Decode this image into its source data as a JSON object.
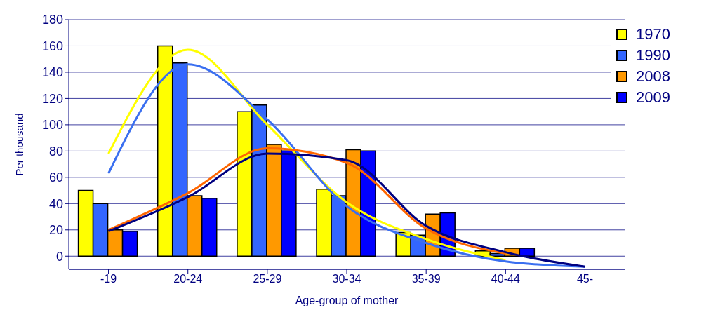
{
  "chart_data": {
    "type": "bar",
    "xlabel": "Age-group of mother",
    "ylabel": "Per thousand",
    "categories": [
      "-19",
      "20-24",
      "25-29",
      "30-34",
      "35-39",
      "40-44",
      "45-"
    ],
    "series": [
      {
        "name": "1970",
        "color": "#ffff00",
        "values": [
          50,
          160,
          110,
          51,
          18,
          4,
          0
        ]
      },
      {
        "name": "1990",
        "color": "#3366ff",
        "values": [
          40,
          147,
          115,
          46,
          16,
          2,
          0
        ]
      },
      {
        "name": "2008",
        "color": "#ff9900",
        "values": [
          20,
          46,
          85,
          81,
          32,
          6,
          0
        ]
      },
      {
        "name": "2009",
        "color": "#0000ff",
        "values": [
          19,
          44,
          80,
          80,
          33,
          6,
          0
        ]
      },
      {
        "type": "line",
        "color": "#ffff00",
        "values": [
          78,
          157,
          100,
          41,
          13,
          -3,
          null
        ]
      },
      {
        "type": "line",
        "color": "#3a6ff0",
        "values": [
          63,
          146,
          104,
          38,
          10,
          -4,
          -8
        ]
      },
      {
        "type": "line",
        "color": "#ff6600",
        "values": [
          20,
          48,
          82,
          71,
          21,
          2,
          null
        ]
      },
      {
        "type": "line",
        "color": "#000080",
        "values": [
          19,
          45,
          78,
          73,
          23,
          3,
          -8
        ]
      }
    ],
    "ylim": [
      -10,
      180
    ],
    "yticks": [
      0,
      20,
      40,
      60,
      80,
      100,
      120,
      140,
      160,
      180
    ],
    "grid": "y",
    "legend": "top right",
    "marker": "none",
    "line_style": "solid"
  }
}
